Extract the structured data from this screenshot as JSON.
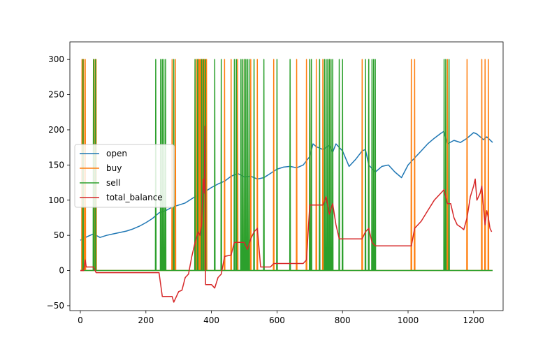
{
  "chart_data": {
    "type": "line",
    "xlim": [
      -32,
      1290
    ],
    "ylim": [
      -57,
      325
    ],
    "xticks": [
      0,
      200,
      400,
      600,
      800,
      1000,
      1200
    ],
    "yticks": [
      -50,
      0,
      50,
      100,
      150,
      200,
      250,
      300
    ],
    "legend_position": "center-left",
    "grid": false,
    "series": [
      {
        "name": "open",
        "color": "#1f77b4",
        "points": [
          [
            0,
            43
          ],
          [
            20,
            48
          ],
          [
            40,
            52
          ],
          [
            60,
            47
          ],
          [
            80,
            50
          ],
          [
            100,
            52
          ],
          [
            120,
            54
          ],
          [
            140,
            56
          ],
          [
            160,
            59
          ],
          [
            180,
            63
          ],
          [
            200,
            68
          ],
          [
            220,
            74
          ],
          [
            240,
            82
          ],
          [
            260,
            85
          ],
          [
            280,
            90
          ],
          [
            300,
            93
          ],
          [
            320,
            96
          ],
          [
            340,
            102
          ],
          [
            360,
            108
          ],
          [
            380,
            112
          ],
          [
            400,
            118
          ],
          [
            420,
            123
          ],
          [
            440,
            127
          ],
          [
            460,
            134
          ],
          [
            480,
            138
          ],
          [
            500,
            133
          ],
          [
            520,
            134
          ],
          [
            540,
            130
          ],
          [
            560,
            132
          ],
          [
            580,
            138
          ],
          [
            600,
            144
          ],
          [
            620,
            147
          ],
          [
            640,
            148
          ],
          [
            660,
            146
          ],
          [
            680,
            150
          ],
          [
            700,
            162
          ],
          [
            710,
            180
          ],
          [
            720,
            176
          ],
          [
            740,
            172
          ],
          [
            760,
            178
          ],
          [
            770,
            168
          ],
          [
            780,
            180
          ],
          [
            800,
            170
          ],
          [
            820,
            148
          ],
          [
            840,
            158
          ],
          [
            860,
            170
          ],
          [
            870,
            172
          ],
          [
            880,
            150
          ],
          [
            900,
            140
          ],
          [
            920,
            148
          ],
          [
            940,
            150
          ],
          [
            960,
            140
          ],
          [
            980,
            132
          ],
          [
            1000,
            150
          ],
          [
            1020,
            160
          ],
          [
            1040,
            170
          ],
          [
            1060,
            180
          ],
          [
            1080,
            188
          ],
          [
            1100,
            195
          ],
          [
            1110,
            198
          ],
          [
            1120,
            180
          ],
          [
            1140,
            185
          ],
          [
            1160,
            182
          ],
          [
            1180,
            188
          ],
          [
            1200,
            196
          ],
          [
            1210,
            194
          ],
          [
            1220,
            190
          ],
          [
            1230,
            186
          ],
          [
            1240,
            190
          ],
          [
            1258,
            182
          ]
        ]
      },
      {
        "name": "buy",
        "color": "#ff7f0e",
        "spikes": [
          5,
          10,
          15,
          42,
          48,
          280,
          290,
          350,
          355,
          360,
          362,
          365,
          368,
          370,
          372,
          375,
          378,
          380,
          385,
          440,
          460,
          480,
          500,
          520,
          540,
          590,
          660,
          690,
          700,
          720,
          740,
          760,
          860,
          880,
          1010,
          1020,
          1120,
          1180,
          1225,
          1235,
          1245
        ]
      },
      {
        "name": "sell",
        "color": "#2ca02c",
        "spikes": [
          8,
          40,
          46,
          230,
          245,
          250,
          255,
          260,
          285,
          350,
          358,
          370,
          376,
          382,
          410,
          430,
          470,
          476,
          490,
          495,
          500,
          505,
          510,
          515,
          530,
          560,
          600,
          640,
          700,
          705,
          730,
          745,
          750,
          755,
          760,
          765,
          770,
          790,
          800,
          870,
          880,
          890,
          895,
          900,
          1110,
          1115,
          1125
        ]
      },
      {
        "name": "total_balance",
        "color": "#d62728",
        "points": [
          [
            0,
            0
          ],
          [
            10,
            0
          ],
          [
            12,
            5
          ],
          [
            15,
            15
          ],
          [
            18,
            5
          ],
          [
            40,
            5
          ],
          [
            48,
            -3
          ],
          [
            240,
            -3
          ],
          [
            250,
            -37
          ],
          [
            280,
            -37
          ],
          [
            285,
            -45
          ],
          [
            290,
            -40
          ],
          [
            300,
            -30
          ],
          [
            310,
            -28
          ],
          [
            320,
            -10
          ],
          [
            330,
            -5
          ],
          [
            340,
            20
          ],
          [
            350,
            40
          ],
          [
            360,
            55
          ],
          [
            365,
            50
          ],
          [
            370,
            65
          ],
          [
            375,
            130
          ],
          [
            378,
            110
          ],
          [
            380,
            205
          ],
          [
            382,
            -20
          ],
          [
            400,
            -20
          ],
          [
            410,
            -25
          ],
          [
            420,
            -10
          ],
          [
            430,
            -5
          ],
          [
            440,
            20
          ],
          [
            460,
            22
          ],
          [
            470,
            40
          ],
          [
            500,
            40
          ],
          [
            510,
            30
          ],
          [
            520,
            45
          ],
          [
            530,
            55
          ],
          [
            540,
            60
          ],
          [
            550,
            5
          ],
          [
            580,
            5
          ],
          [
            590,
            10
          ],
          [
            680,
            10
          ],
          [
            690,
            15
          ],
          [
            700,
            93
          ],
          [
            740,
            93
          ],
          [
            750,
            105
          ],
          [
            760,
            80
          ],
          [
            770,
            95
          ],
          [
            780,
            65
          ],
          [
            790,
            45
          ],
          [
            860,
            45
          ],
          [
            870,
            55
          ],
          [
            880,
            60
          ],
          [
            890,
            40
          ],
          [
            900,
            35
          ],
          [
            1010,
            35
          ],
          [
            1020,
            60
          ],
          [
            1040,
            70
          ],
          [
            1060,
            85
          ],
          [
            1080,
            100
          ],
          [
            1100,
            110
          ],
          [
            1110,
            115
          ],
          [
            1120,
            95
          ],
          [
            1130,
            95
          ],
          [
            1140,
            75
          ],
          [
            1150,
            65
          ],
          [
            1160,
            62
          ],
          [
            1170,
            58
          ],
          [
            1180,
            75
          ],
          [
            1190,
            105
          ],
          [
            1200,
            120
          ],
          [
            1205,
            130
          ],
          [
            1210,
            100
          ],
          [
            1220,
            110
          ],
          [
            1225,
            120
          ],
          [
            1230,
            90
          ],
          [
            1235,
            65
          ],
          [
            1240,
            85
          ],
          [
            1245,
            75
          ],
          [
            1250,
            60
          ],
          [
            1255,
            55
          ]
        ]
      }
    ]
  }
}
